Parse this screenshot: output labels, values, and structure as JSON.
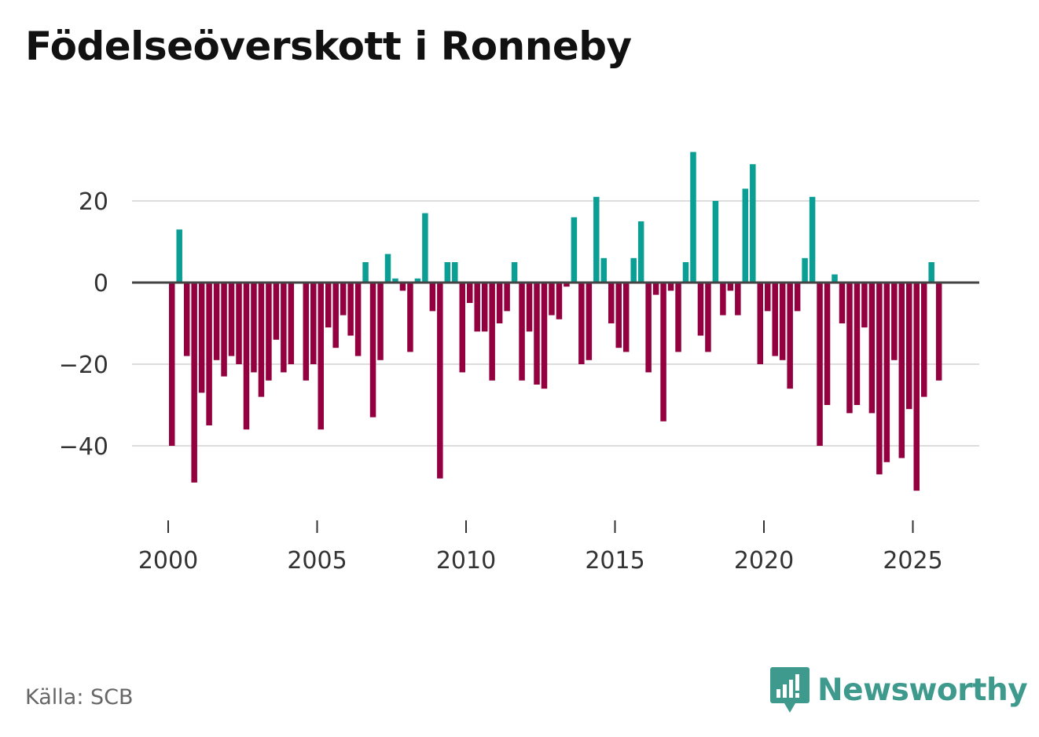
{
  "title": "Födelseöverskott i Ronneby",
  "source": "Källa: SCB",
  "brand": "Newsworthy",
  "colors": {
    "positive": "#0a9e94",
    "negative": "#94003f",
    "zero_line": "#444444",
    "grid": "#dddddd",
    "brand": "#3e9a8c"
  },
  "chart_data": {
    "type": "bar",
    "title": "Födelseöverskott i Ronneby",
    "xlabel": "",
    "ylabel": "",
    "ylim": [
      -54,
      36
    ],
    "xlim": [
      1999,
      2027.3
    ],
    "yticks": [
      20,
      0,
      -20,
      -40
    ],
    "ytick_labels": [
      "20",
      "0",
      "−20",
      "−40"
    ],
    "xticks": [
      2000,
      2005,
      2010,
      2015,
      2020,
      2025
    ],
    "xtick_labels": [
      "2000",
      "2005",
      "2010",
      "2015",
      "2020",
      "2025"
    ],
    "frequency": "quarterly",
    "x_start": 2000.0,
    "values": [
      -40,
      13,
      -18,
      -49,
      -27,
      -35,
      -19,
      -23,
      -18,
      -20,
      -36,
      -22,
      -28,
      -24,
      -14,
      -22,
      -20,
      0,
      -24,
      -20,
      -36,
      -11,
      -16,
      -8,
      -13,
      -18,
      5,
      -33,
      -19,
      7,
      1,
      -2,
      -17,
      1,
      17,
      -7,
      -48,
      5,
      5,
      -22,
      -5,
      -12,
      -12,
      -24,
      -10,
      -7,
      5,
      -24,
      -12,
      -25,
      -26,
      -8,
      -9,
      -1,
      16,
      -20,
      -19,
      21,
      6,
      -10,
      -16,
      -17,
      6,
      15,
      -22,
      -3,
      -34,
      -2,
      -17,
      5,
      32,
      -13,
      -17,
      20,
      -8,
      -2,
      -8,
      23,
      29,
      -20,
      -7,
      -18,
      -19,
      -26,
      -7,
      6,
      21,
      -40,
      -30,
      2,
      -10,
      -32,
      -30,
      -11,
      -32,
      -47,
      -44,
      -19,
      -43,
      -31,
      -51,
      -28,
      5,
      -24
    ]
  }
}
